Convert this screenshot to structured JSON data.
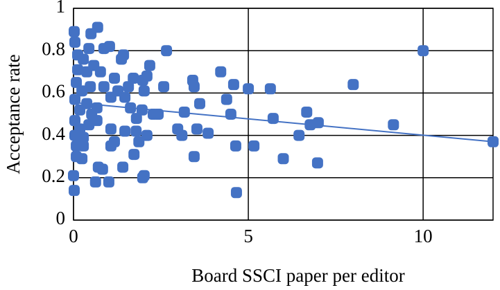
{
  "chart_data": {
    "type": "scatter",
    "xlabel": "Board SSCI paper per editor",
    "ylabel": "Acceptance rate",
    "x": [
      10.0,
      12,
      9.15,
      8.0,
      7.0,
      6.77,
      6.67,
      6.45,
      6.98,
      6.0,
      5.63,
      5.71,
      5.16,
      5.0,
      4.58,
      4.5,
      4.64,
      4.66,
      4.38,
      4.21,
      3.61,
      3.53,
      3.85,
      3.45,
      3.41,
      3.45,
      3.17,
      3.1,
      2.98,
      2.66,
      2.58,
      2.42,
      2.28,
      2.18,
      2.1,
      1.98,
      2.02,
      2.1,
      2.02,
      1.98,
      1.87,
      1.73,
      1.79,
      1.8,
      1.96,
      1.63,
      1.43,
      1.37,
      1.41,
      1.47,
      1.17,
      1.27,
      1.07,
      1.03,
      0.87,
      0.69,
      0.5,
      1.01,
      0.63,
      0.71,
      0.83,
      1.07,
      1.17,
      1.07,
      0.77,
      0.87,
      0.67,
      0.02,
      0.04,
      0.02,
      0,
      0.08,
      0.24,
      0.28,
      0.12,
      0.28,
      0.44,
      0.12,
      0.38,
      0.58,
      0.08,
      0.24,
      0.48,
      0.04,
      0.18,
      0.38,
      0.52,
      0.04,
      0.18,
      0.44,
      0.67,
      0.04,
      0.28,
      0.08,
      1.57,
      1.71,
      1.47
    ],
    "y": [
      0.8,
      0.37,
      0.45,
      0.64,
      0.46,
      0.45,
      0.51,
      0.4,
      0.27,
      0.29,
      0.62,
      0.48,
      0.35,
      0.62,
      0.64,
      0.5,
      0.35,
      0.13,
      0.57,
      0.7,
      0.55,
      0.43,
      0.41,
      0.3,
      0.66,
      0.63,
      0.51,
      0.4,
      0.43,
      0.8,
      0.63,
      0.5,
      0.5,
      0.73,
      0.68,
      0.66,
      0.61,
      0.4,
      0.21,
      0.2,
      0.37,
      0.31,
      0.42,
      0.48,
      0.52,
      0.53,
      0.78,
      0.76,
      0.25,
      0.42,
      0.67,
      0.61,
      0.58,
      0.82,
      0.81,
      0.91,
      0.88,
      0.18,
      0.18,
      0.25,
      0.24,
      0.35,
      0.37,
      0.43,
      0.7,
      0.63,
      0.53,
      0.89,
      0.84,
      0.14,
      0.21,
      0.3,
      0.29,
      0.39,
      0.78,
      0.76,
      0.81,
      0.71,
      0.7,
      0.73,
      0.65,
      0.61,
      0.63,
      0.57,
      0.52,
      0.55,
      0.5,
      0.47,
      0.43,
      0.45,
      0.47,
      0.4,
      0.35,
      0.35,
      0.63,
      0.67,
      0.58
    ],
    "color": "#4472c4",
    "trendline": {
      "x": [
        0,
        12
      ],
      "y": [
        0.555,
        0.37
      ],
      "color": "#4472c4"
    },
    "xlim": [
      0,
      12
    ],
    "xticks": [
      0,
      5,
      10
    ],
    "ylim": [
      0,
      1
    ],
    "yticks": [
      0,
      0.2,
      0.4,
      0.6,
      0.8,
      1
    ],
    "grid": true
  }
}
